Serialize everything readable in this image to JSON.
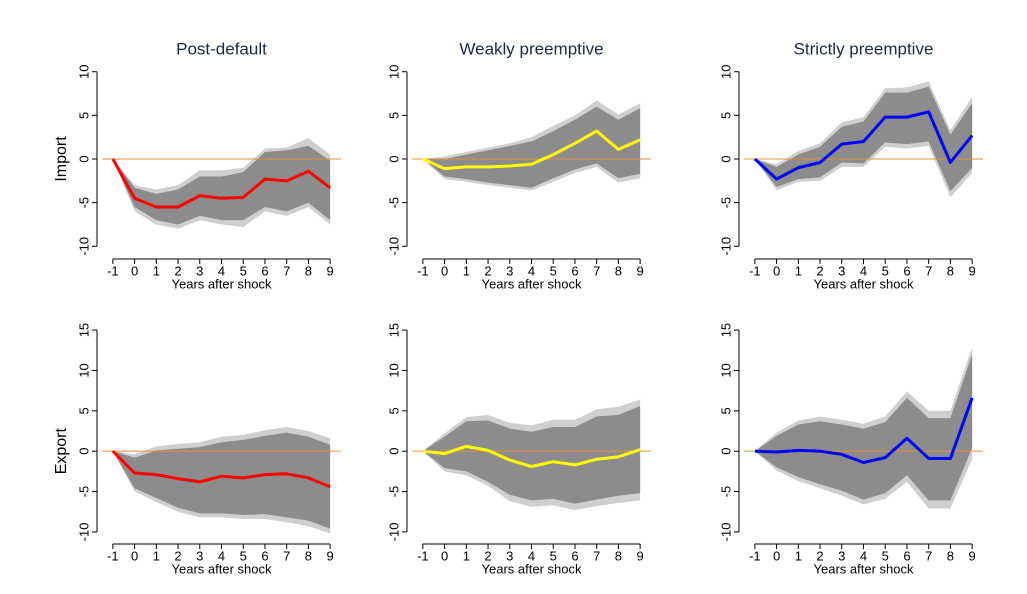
{
  "chart_data": [
    {
      "type": "line",
      "title": "Post-default",
      "ylabel": "Import",
      "xlabel": "Years after shock",
      "x": [
        -1,
        0,
        1,
        2,
        3,
        4,
        5,
        6,
        7,
        8,
        9
      ],
      "xticks": [
        -1,
        0,
        1,
        2,
        3,
        4,
        5,
        6,
        7,
        8,
        9
      ],
      "xlim": [
        -1.5,
        9.5
      ],
      "ylim": [
        -11,
        11
      ],
      "yticks": [
        -10,
        -5,
        0,
        5,
        10
      ],
      "zero_line_color": "#e0903a",
      "bands": [
        {
          "color": "#cfcfcf",
          "lower": [
            0,
            -6,
            -7.5,
            -8,
            -7,
            -7.5,
            -7.8,
            -6,
            -6.5,
            -5.5,
            -7.5
          ],
          "upper": [
            0,
            -3,
            -3.5,
            -3,
            -1.3,
            -1.3,
            -1,
            1.2,
            1.3,
            2.4,
            0.5
          ]
        },
        {
          "color": "#8c8c8c",
          "lower": [
            0,
            -5.5,
            -7,
            -7.5,
            -6.5,
            -7,
            -7,
            -5.5,
            -6,
            -5,
            -7
          ],
          "upper": [
            0,
            -3.3,
            -4,
            -3.5,
            -2,
            -2,
            -1.5,
            0.8,
            1,
            1.5,
            -0.2
          ]
        }
      ],
      "series": [
        {
          "color": "#ff0000",
          "values": [
            0,
            -4.5,
            -5.5,
            -5.5,
            -4.2,
            -4.5,
            -4.4,
            -2.3,
            -2.5,
            -1.4,
            -3.3
          ]
        }
      ]
    },
    {
      "type": "line",
      "title": "Weakly preemptive",
      "xlabel": "Years after shock",
      "x": [
        -1,
        0,
        1,
        2,
        3,
        4,
        5,
        6,
        7,
        8,
        9
      ],
      "xticks": [
        -1,
        0,
        1,
        2,
        3,
        4,
        5,
        6,
        7,
        8,
        9
      ],
      "xlim": [
        -1.5,
        9.5
      ],
      "ylim": [
        -11,
        11
      ],
      "yticks": [
        -10,
        -5,
        0,
        5,
        10
      ],
      "zero_line_color": "#e0903a",
      "bands": [
        {
          "color": "#cfcfcf",
          "lower": [
            0,
            -2.3,
            -2.6,
            -3,
            -3.3,
            -3.6,
            -2.6,
            -1.6,
            -0.9,
            -2.7,
            -2.2
          ],
          "upper": [
            0,
            0.3,
            0.8,
            1.3,
            1.8,
            2.5,
            3.8,
            5,
            6.7,
            5.1,
            6.4
          ]
        },
        {
          "color": "#8c8c8c",
          "lower": [
            0,
            -2,
            -2.3,
            -2.7,
            -3,
            -3.3,
            -2.2,
            -1.2,
            -0.5,
            -2.2,
            -1.7
          ],
          "upper": [
            0,
            0,
            0.5,
            1,
            1.5,
            2,
            3.2,
            4.5,
            6,
            4.5,
            5.8
          ]
        }
      ],
      "series": [
        {
          "color": "#ffff00",
          "values": [
            0,
            -1.1,
            -0.9,
            -0.9,
            -0.8,
            -0.6,
            0.5,
            1.8,
            3.2,
            1.1,
            2.2
          ]
        }
      ]
    },
    {
      "type": "line",
      "title": "Strictly preemptive",
      "xlabel": "Years after shock",
      "x": [
        -1,
        0,
        1,
        2,
        3,
        4,
        5,
        6,
        7,
        8,
        9
      ],
      "xticks": [
        -1,
        0,
        1,
        2,
        3,
        4,
        5,
        6,
        7,
        8,
        9
      ],
      "xlim": [
        -1.5,
        9.5
      ],
      "ylim": [
        -11,
        11
      ],
      "yticks": [
        -10,
        -5,
        0,
        5,
        10
      ],
      "zero_line_color": "#e0903a",
      "bands": [
        {
          "color": "#cfcfcf",
          "lower": [
            0,
            -3.6,
            -2.6,
            -2.5,
            -0.9,
            -0.9,
            1.4,
            1.2,
            1.5,
            -4.4,
            -1.6
          ],
          "upper": [
            0,
            -0.6,
            0.9,
            1.8,
            4.2,
            4.8,
            8.1,
            8.2,
            8.9,
            3.3,
            7.1
          ]
        },
        {
          "color": "#8c8c8c",
          "lower": [
            0,
            -3.2,
            -2.3,
            -2.1,
            -0.4,
            -0.5,
            1.9,
            1.7,
            2,
            -3.7,
            -1
          ],
          "upper": [
            0,
            -0.9,
            0.5,
            1.4,
            3.7,
            4.3,
            7.6,
            7.6,
            8.3,
            2.8,
            6.4
          ]
        }
      ],
      "series": [
        {
          "color": "#0000ff",
          "values": [
            0,
            -2.3,
            -1,
            -0.4,
            1.7,
            2,
            4.8,
            4.8,
            5.4,
            -0.4,
            2.7
          ]
        }
      ]
    },
    {
      "type": "line",
      "ylabel": "Export",
      "xlabel": "Years after shock",
      "x": [
        -1,
        0,
        1,
        2,
        3,
        4,
        5,
        6,
        7,
        8,
        9
      ],
      "xticks": [
        -1,
        0,
        1,
        2,
        3,
        4,
        5,
        6,
        7,
        8,
        9
      ],
      "xlim": [
        -1.5,
        9.5
      ],
      "ylim": [
        -11,
        16
      ],
      "yticks": [
        -10,
        -5,
        0,
        5,
        10,
        15
      ],
      "zero_line_color": "#e0903a",
      "bands": [
        {
          "color": "#cfcfcf",
          "lower": [
            0,
            -5,
            -6.3,
            -7.5,
            -8.2,
            -8.2,
            -8.4,
            -8.4,
            -8.8,
            -9.3,
            -10.2
          ],
          "upper": [
            0,
            -0.4,
            0.6,
            0.9,
            1.1,
            1.8,
            2,
            2.6,
            3,
            2.5,
            1.6
          ]
        },
        {
          "color": "#8c8c8c",
          "lower": [
            0,
            -4.6,
            -5.8,
            -7,
            -7.7,
            -7.7,
            -7.9,
            -7.8,
            -8.2,
            -8.6,
            -9.6
          ],
          "upper": [
            0,
            -0.8,
            0.1,
            0.3,
            0.5,
            1.1,
            1.4,
            1.9,
            2.3,
            1.8,
            0.8
          ]
        }
      ],
      "series": [
        {
          "color": "#ff0000",
          "values": [
            0,
            -2.7,
            -2.9,
            -3.4,
            -3.8,
            -3.1,
            -3.3,
            -2.9,
            -2.8,
            -3.3,
            -4.4
          ]
        }
      ]
    },
    {
      "type": "line",
      "xlabel": "Years after shock",
      "x": [
        -1,
        0,
        1,
        2,
        3,
        4,
        5,
        6,
        7,
        8,
        9
      ],
      "xticks": [
        -1,
        0,
        1,
        2,
        3,
        4,
        5,
        6,
        7,
        8,
        9
      ],
      "xlim": [
        -1.5,
        9.5
      ],
      "ylim": [
        -11,
        16
      ],
      "yticks": [
        -10,
        -5,
        0,
        5,
        10,
        15
      ],
      "zero_line_color": "#e0903a",
      "bands": [
        {
          "color": "#cfcfcf",
          "lower": [
            0,
            -2.5,
            -3,
            -4.3,
            -6.2,
            -6.9,
            -6.7,
            -7.3,
            -6.8,
            -6.4,
            -6.1
          ],
          "upper": [
            0,
            2.2,
            4.2,
            4.5,
            3.5,
            3.2,
            3.9,
            3.9,
            5.2,
            5.5,
            6.4
          ]
        },
        {
          "color": "#8c8c8c",
          "lower": [
            0,
            -2.1,
            -2.5,
            -3.8,
            -5.4,
            -6.1,
            -5.9,
            -6.5,
            -6,
            -5.5,
            -5.2
          ],
          "upper": [
            0,
            1.8,
            3.7,
            3.8,
            2.8,
            2.4,
            3,
            3,
            4.3,
            4.5,
            5.6
          ]
        }
      ],
      "series": [
        {
          "color": "#ffff00",
          "values": [
            0,
            -0.3,
            0.6,
            0.1,
            -1.1,
            -1.9,
            -1.3,
            -1.7,
            -1,
            -0.7,
            0.2
          ]
        }
      ]
    },
    {
      "type": "line",
      "xlabel": "Years after shock",
      "x": [
        -1,
        0,
        1,
        2,
        3,
        4,
        5,
        6,
        7,
        8,
        9
      ],
      "xticks": [
        -1,
        0,
        1,
        2,
        3,
        4,
        5,
        6,
        7,
        8,
        9
      ],
      "xlim": [
        -1.5,
        9.5
      ],
      "ylim": [
        -11,
        16
      ],
      "yticks": [
        -10,
        -5,
        0,
        5,
        10,
        15
      ],
      "zero_line_color": "#e0903a",
      "bands": [
        {
          "color": "#cfcfcf",
          "lower": [
            0,
            -2.4,
            -3.7,
            -4.6,
            -5.5,
            -6.6,
            -5.9,
            -3.8,
            -7.1,
            -7.1,
            -1
          ],
          "upper": [
            0,
            2.3,
            3.8,
            4.3,
            3.9,
            3.4,
            4.3,
            7.4,
            5,
            5,
            12.9
          ]
        },
        {
          "color": "#8c8c8c",
          "lower": [
            0,
            -2,
            -3.2,
            -4.1,
            -4.9,
            -6,
            -5.2,
            -3,
            -6.1,
            -6.1,
            0.4
          ],
          "upper": [
            0,
            1.9,
            3.3,
            3.7,
            3.3,
            2.8,
            3.6,
            6.6,
            4.1,
            4.1,
            12
          ]
        }
      ],
      "series": [
        {
          "color": "#0000ff",
          "values": [
            0,
            -0.1,
            0.1,
            0,
            -0.4,
            -1.4,
            -0.8,
            1.6,
            -0.9,
            -0.9,
            6.6
          ]
        }
      ]
    }
  ]
}
